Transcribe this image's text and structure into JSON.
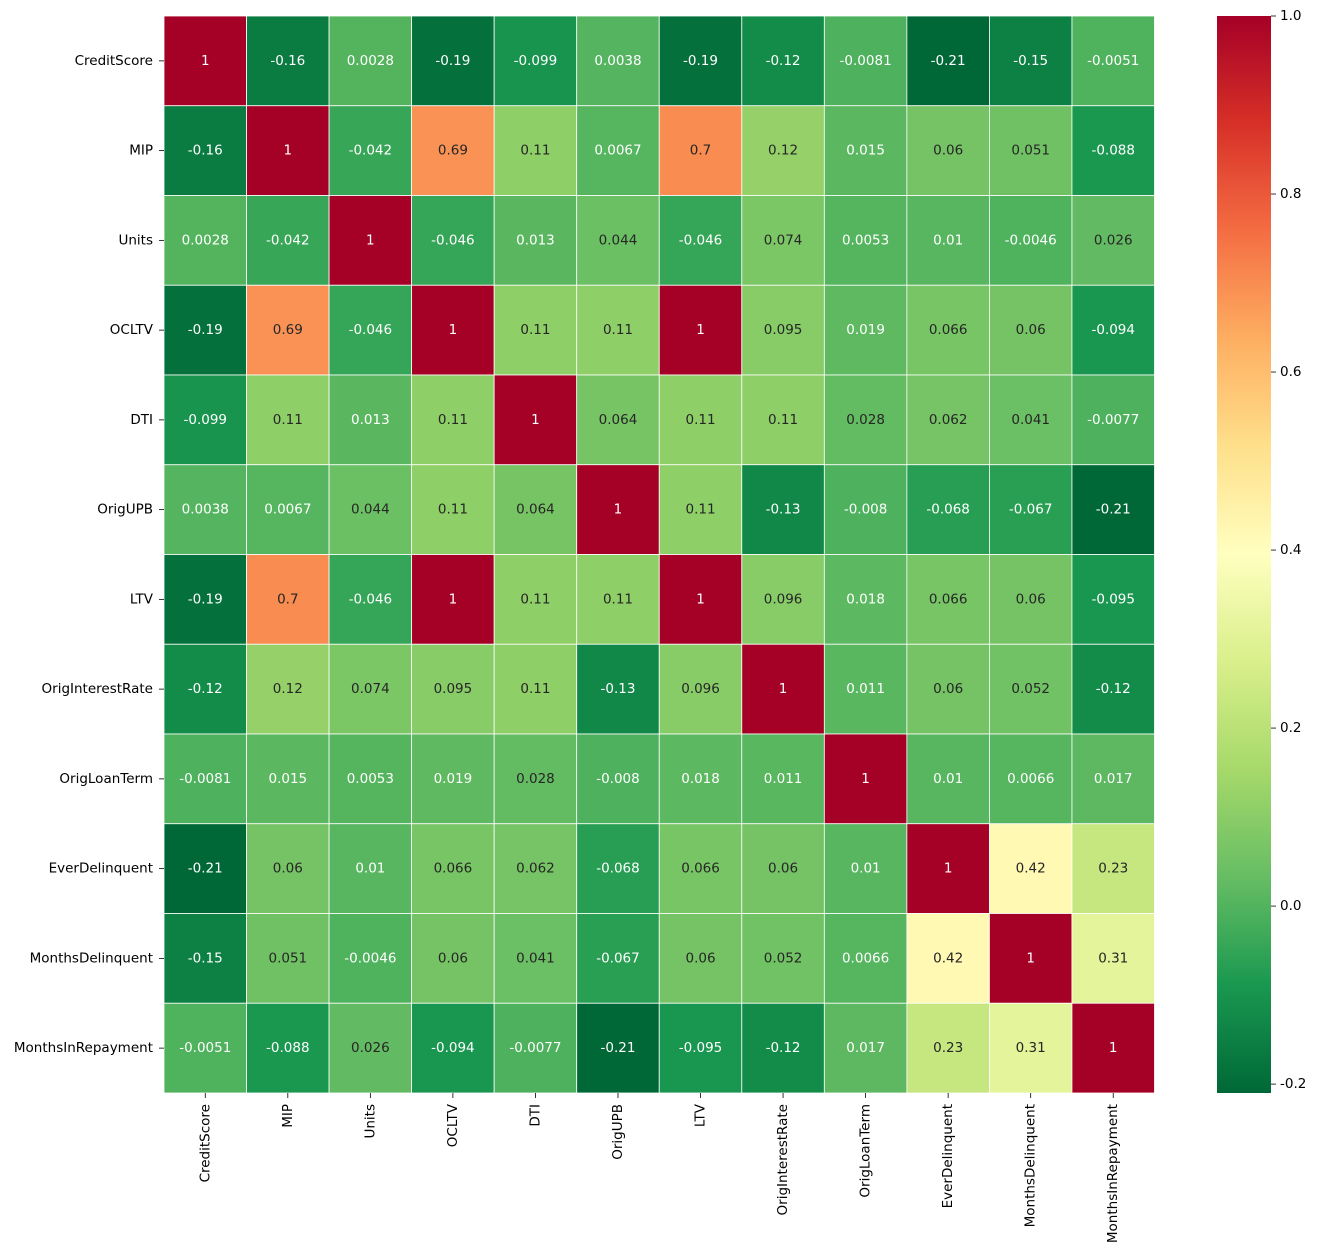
{
  "chart_data": {
    "type": "heatmap",
    "title": "",
    "xlabel": "",
    "ylabel": "",
    "labels": [
      "CreditScore",
      "MIP",
      "Units",
      "OCLTV",
      "DTI",
      "OrigUPB",
      "LTV",
      "OrigInterestRate",
      "OrigLoanTerm",
      "EverDelinquent",
      "MonthsDelinquent",
      "MonthsInRepayment"
    ],
    "annotations": [
      [
        "1",
        "-0.16",
        "0.0028",
        "-0.19",
        "-0.099",
        "0.0038",
        "-0.19",
        "-0.12",
        "-0.0081",
        "-0.21",
        "-0.15",
        "-0.0051"
      ],
      [
        "-0.16",
        "1",
        "-0.042",
        "0.69",
        "0.11",
        "0.0067",
        "0.7",
        "0.12",
        "0.015",
        "0.06",
        "0.051",
        "-0.088"
      ],
      [
        "0.0028",
        "-0.042",
        "1",
        "-0.046",
        "0.013",
        "0.044",
        "-0.046",
        "0.074",
        "0.0053",
        "0.01",
        "-0.0046",
        "0.026"
      ],
      [
        "-0.19",
        "0.69",
        "-0.046",
        "1",
        "0.11",
        "0.11",
        "1",
        "0.095",
        "0.019",
        "0.066",
        "0.06",
        "-0.094"
      ],
      [
        "-0.099",
        "0.11",
        "0.013",
        "0.11",
        "1",
        "0.064",
        "0.11",
        "0.11",
        "0.028",
        "0.062",
        "0.041",
        "-0.0077"
      ],
      [
        "0.0038",
        "0.0067",
        "0.044",
        "0.11",
        "0.064",
        "1",
        "0.11",
        "-0.13",
        "-0.008",
        "-0.068",
        "-0.067",
        "-0.21"
      ],
      [
        "-0.19",
        "0.7",
        "-0.046",
        "1",
        "0.11",
        "0.11",
        "1",
        "0.096",
        "0.018",
        "0.066",
        "0.06",
        "-0.095"
      ],
      [
        "-0.12",
        "0.12",
        "0.074",
        "0.095",
        "0.11",
        "-0.13",
        "0.096",
        "1",
        "0.011",
        "0.06",
        "0.052",
        "-0.12"
      ],
      [
        "-0.0081",
        "0.015",
        "0.0053",
        "0.019",
        "0.028",
        "-0.008",
        "0.018",
        "0.011",
        "1",
        "0.01",
        "0.0066",
        "0.017"
      ],
      [
        "-0.21",
        "0.06",
        "0.01",
        "0.066",
        "0.062",
        "-0.068",
        "0.066",
        "0.06",
        "0.01",
        "1",
        "0.42",
        "0.23"
      ],
      [
        "-0.15",
        "0.051",
        "-0.0046",
        "0.06",
        "0.041",
        "-0.067",
        "0.06",
        "0.052",
        "0.0066",
        "0.42",
        "1",
        "0.31"
      ],
      [
        "-0.0051",
        "-0.088",
        "0.026",
        "-0.094",
        "-0.0077",
        "-0.21",
        "-0.095",
        "-0.12",
        "0.017",
        "0.23",
        "0.31",
        "1"
      ]
    ],
    "colorbar": {
      "min": -0.21,
      "max": 1.0,
      "ticks": [
        "1.0",
        "0.8",
        "0.6",
        "0.4",
        "0.2",
        "0.0",
        "-0.2"
      ],
      "tick_values": [
        1.0,
        0.8,
        0.6,
        0.4,
        0.2,
        0.0,
        -0.2
      ],
      "colormap": "RdYlGn_r"
    },
    "grid": true,
    "cell_line_color": "#ffffff"
  }
}
